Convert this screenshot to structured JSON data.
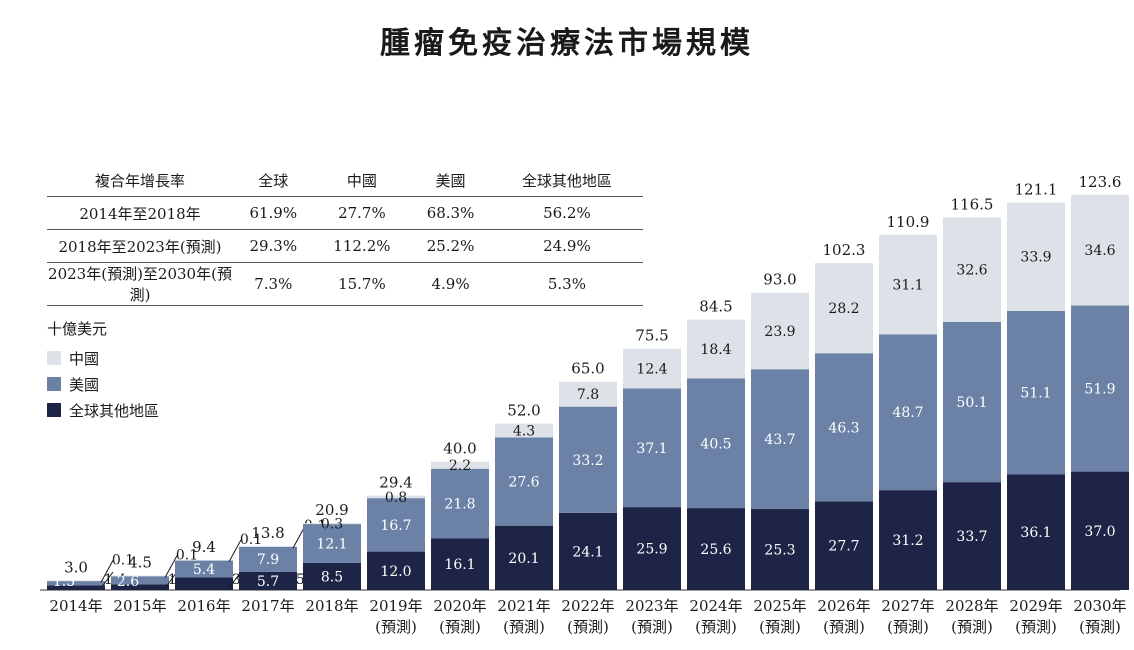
{
  "title": "腫瘤免疫治療法市場規模",
  "cagr_table": {
    "headers": [
      "複合年增長率",
      "全球",
      "中國",
      "美國",
      "全球其他地區"
    ],
    "rows": [
      [
        "2014年至2018年",
        "61.9%",
        "27.7%",
        "68.3%",
        "56.2%"
      ],
      [
        "2018年至2023年(預測)",
        "29.3%",
        "112.2%",
        "25.2%",
        "24.9%"
      ],
      [
        "2023年(預測)至2030年(預測)",
        "7.3%",
        "15.7%",
        "4.9%",
        "5.3%"
      ]
    ]
  },
  "legend": {
    "unit": "十億美元",
    "items": [
      {
        "label": "中國",
        "color": "#dde2e8"
      },
      {
        "label": "美國",
        "color": "#6b82a6"
      },
      {
        "label": "全球其他地區",
        "color": "#1e2446"
      }
    ]
  },
  "chart_data": {
    "type": "bar",
    "stacked": true,
    "categories": [
      [
        "2014年",
        ""
      ],
      [
        "2015年",
        ""
      ],
      [
        "2016年",
        ""
      ],
      [
        "2017年",
        ""
      ],
      [
        "2018年",
        ""
      ],
      [
        "2019年",
        "(預測)"
      ],
      [
        "2020年",
        "(預測)"
      ],
      [
        "2021年",
        "(預測)"
      ],
      [
        "2022年",
        "(預測)"
      ],
      [
        "2023年",
        "(預測)"
      ],
      [
        "2024年",
        "(預測)"
      ],
      [
        "2025年",
        "(預測)"
      ],
      [
        "2026年",
        "(預測)"
      ],
      [
        "2027年",
        "(預測)"
      ],
      [
        "2028年",
        "(預測)"
      ],
      [
        "2029年",
        "(預測)"
      ],
      [
        "2030年",
        "(預測)"
      ]
    ],
    "series": [
      {
        "name": "全球其他地區",
        "color": "#1e2446",
        "values": [
          1.4,
          1.8,
          3.9,
          5.7,
          8.5,
          12.0,
          16.1,
          20.1,
          24.1,
          25.9,
          25.6,
          25.3,
          27.7,
          31.2,
          33.7,
          36.1,
          37.0
        ],
        "labels": [
          "1.4",
          "1.8",
          "3.9",
          "5.7",
          "8.5",
          "12.0",
          "16.1",
          "20.1",
          "24.1",
          "25.9",
          "25.6",
          "25.3",
          "27.7",
          "31.2",
          "33.7",
          "36.1",
          "37.0"
        ]
      },
      {
        "name": "美國",
        "color": "#6b82a6",
        "values": [
          1.5,
          2.6,
          5.4,
          7.9,
          12.1,
          16.7,
          21.8,
          27.6,
          33.2,
          37.1,
          40.5,
          43.7,
          46.3,
          48.7,
          50.1,
          51.1,
          51.9
        ],
        "labels": [
          "1.5",
          "2.6",
          "5.4",
          "7.9",
          "12.1",
          "16.7",
          "21.8",
          "27.6",
          "33.2",
          "37.1",
          "40.5",
          "43.7",
          "46.3",
          "48.7",
          "50.1",
          "51.1",
          "51.9"
        ]
      },
      {
        "name": "中國",
        "color": "#dde2e8",
        "values": [
          0.1,
          0.1,
          0.1,
          0.1,
          0.3,
          0.8,
          2.2,
          4.3,
          7.8,
          12.4,
          18.4,
          23.9,
          28.2,
          31.1,
          32.6,
          33.9,
          34.6
        ],
        "labels": [
          "0.1",
          "0.1",
          "0.1",
          "0.1",
          "0.3",
          "0.8",
          "2.2",
          "4.3",
          "7.8",
          "12.4",
          "18.4",
          "23.9",
          "28.2",
          "31.1",
          "32.6",
          "33.9",
          "34.6"
        ]
      }
    ],
    "totals": [
      "3.0",
      "4.5",
      "9.4",
      "13.8",
      "20.9",
      "29.4",
      "40.0",
      "52.0",
      "65.0",
      "75.5",
      "84.5",
      "93.0",
      "102.3",
      "110.9",
      "116.5",
      "121.1",
      "123.6"
    ],
    "ylim": [
      0,
      130
    ]
  }
}
